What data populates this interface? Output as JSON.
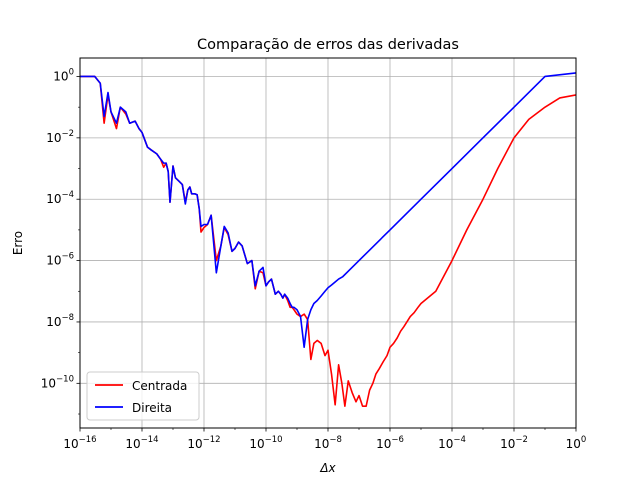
{
  "chart_data": {
    "type": "line",
    "title": "Comparação de erros das derivadas",
    "xlabel": "Δx",
    "ylabel": "Erro",
    "xscale": "log",
    "yscale": "log",
    "xlim": [
      1e-16,
      1
    ],
    "ylim": [
      3.5e-12,
      4
    ],
    "grid": true,
    "legend_position": "lower-left",
    "xticks": [
      1e-16,
      1e-14,
      1e-12,
      1e-10,
      1e-08,
      1e-06,
      0.0001,
      0.01,
      1
    ],
    "xtick_labels": [
      {
        "base": "10",
        "exp": "−16"
      },
      {
        "base": "10",
        "exp": "−14"
      },
      {
        "base": "10",
        "exp": "−12"
      },
      {
        "base": "10",
        "exp": "−10"
      },
      {
        "base": "10",
        "exp": "−8"
      },
      {
        "base": "10",
        "exp": "−6"
      },
      {
        "base": "10",
        "exp": "−4"
      },
      {
        "base": "10",
        "exp": "−2"
      },
      {
        "base": "10",
        "exp": "0"
      }
    ],
    "yticks": [
      1e-10,
      1e-08,
      1e-06,
      0.0001,
      0.01,
      1
    ],
    "ytick_labels": [
      {
        "base": "10",
        "exp": "−10"
      },
      {
        "base": "10",
        "exp": "−8"
      },
      {
        "base": "10",
        "exp": "−6"
      },
      {
        "base": "10",
        "exp": "−4"
      },
      {
        "base": "10",
        "exp": "−2"
      },
      {
        "base": "10",
        "exp": "0"
      }
    ],
    "series": [
      {
        "name": "Centrada",
        "color": "#ff0000",
        "x": [
          1e-16,
          2e-16,
          3e-16,
          4.5e-16,
          6e-16,
          8e-16,
          1e-15,
          1.5e-15,
          2e-15,
          3e-15,
          4e-15,
          6e-15,
          8e-15,
          1e-14,
          1.5e-14,
          2e-14,
          3e-14,
          4e-14,
          5e-14,
          6e-14,
          7e-14,
          8e-14,
          1e-13,
          1.2e-13,
          1.5e-13,
          2e-13,
          2.5e-13,
          3e-13,
          3.5e-13,
          4e-13,
          5e-13,
          6e-13,
          7e-13,
          8e-13,
          1e-12,
          1.3e-12,
          1.7e-12,
          2.5e-12,
          3.5e-12,
          4.5e-12,
          6e-12,
          8e-12,
          1e-11,
          1.3e-11,
          1.7e-11,
          2.5e-11,
          3.5e-11,
          4.5e-11,
          6e-11,
          8e-11,
          1e-10,
          1.2e-10,
          1.5e-10,
          2e-10,
          2.5e-10,
          3e-10,
          3.5e-10,
          4e-10,
          5e-10,
          6e-10,
          7e-10,
          8e-10,
          1e-09,
          1.3e-09,
          1.7e-09,
          2.2e-09,
          2.8e-09,
          3.5e-09,
          4.5e-09,
          6e-09,
          8e-09,
          1e-08,
          1.3e-08,
          1.7e-08,
          2.2e-08,
          2.8e-08,
          3.5e-08,
          4.5e-08,
          6e-08,
          8e-08,
          1e-07,
          1.3e-07,
          1.7e-07,
          2.2e-07,
          2.8e-07,
          3.5e-07,
          4.5e-07,
          6e-07,
          8e-07,
          1e-06,
          1.3e-06,
          1.7e-06,
          2.2e-06,
          2.8e-06,
          3.5e-06,
          4.5e-06,
          6e-06,
          8e-06,
          1e-05,
          3e-05,
          0.0001,
          0.0003,
          0.001,
          0.003,
          0.01,
          0.03,
          0.1,
          0.3,
          1
        ],
        "y": [
          1,
          1,
          1,
          0.6,
          0.03,
          0.25,
          0.07,
          0.02,
          0.1,
          0.06,
          0.03,
          0.035,
          0.02,
          0.015,
          0.005,
          0.004,
          0.003,
          0.002,
          0.0011,
          0.0015,
          0.0008,
          8e-05,
          0.0012,
          0.0005,
          0.0004,
          0.0003,
          8e-05,
          0.0002,
          0.00025,
          0.00015,
          0.00015,
          0.00014,
          5e-05,
          8.5e-06,
          1.2e-05,
          1.5e-05,
          3e-05,
          1e-06,
          3e-06,
          1.2e-05,
          7e-06,
          2e-06,
          2.5e-06,
          4e-06,
          3e-06,
          8e-07,
          1e-06,
          1.2e-07,
          4.5e-07,
          4e-07,
          1.5e-07,
          2e-07,
          2.5e-07,
          8e-08,
          1e-07,
          8e-08,
          6e-08,
          8e-08,
          5e-08,
          3e-08,
          3e-08,
          2.5e-08,
          1.8e-08,
          1.5e-08,
          1.8e-08,
          1.2e-08,
          6e-10,
          2e-09,
          2.5e-09,
          2e-09,
          8e-10,
          1.2e-09,
          2e-10,
          2e-11,
          4e-10,
          1e-10,
          1.8e-11,
          1.2e-10,
          5e-11,
          2.5e-11,
          4e-11,
          1.8e-11,
          1.8e-11,
          6e-11,
          1e-10,
          2e-10,
          3e-10,
          5e-10,
          8e-10,
          1.5e-09,
          2e-09,
          3e-09,
          5e-09,
          7e-09,
          1e-08,
          1.5e-08,
          2e-08,
          3e-08,
          4e-08,
          1e-07,
          1e-06,
          1e-05,
          0.0001,
          0.001,
          0.01,
          0.04,
          0.1,
          0.2,
          0.25
        ]
      },
      {
        "name": "Direita",
        "color": "#0000ff",
        "x": [
          1e-16,
          2e-16,
          3e-16,
          4.5e-16,
          6e-16,
          8e-16,
          1e-15,
          1.5e-15,
          2e-15,
          3e-15,
          4e-15,
          6e-15,
          8e-15,
          1e-14,
          1.5e-14,
          2e-14,
          3e-14,
          4e-14,
          5e-14,
          6e-14,
          7e-14,
          8e-14,
          1e-13,
          1.2e-13,
          1.5e-13,
          2e-13,
          2.5e-13,
          3e-13,
          3.5e-13,
          4e-13,
          5e-13,
          6e-13,
          7e-13,
          8e-13,
          1e-12,
          1.3e-12,
          1.7e-12,
          2.5e-12,
          3.5e-12,
          4.5e-12,
          6e-12,
          8e-12,
          1e-11,
          1.3e-11,
          1.7e-11,
          2.5e-11,
          3.5e-11,
          4.5e-11,
          6e-11,
          8e-11,
          1e-10,
          1.2e-10,
          1.5e-10,
          2e-10,
          2.5e-10,
          3e-10,
          3.5e-10,
          4e-10,
          5e-10,
          6e-10,
          7e-10,
          8e-10,
          1e-09,
          1.3e-09,
          1.7e-09,
          2.2e-09,
          2.8e-09,
          3.5e-09,
          4.5e-09,
          6e-09,
          8e-09,
          1e-08,
          1.3e-08,
          1.7e-08,
          2.2e-08,
          3e-08,
          5e-08,
          1e-07,
          1e-06,
          1e-05,
          0.0001,
          0.001,
          0.01,
          0.1,
          1
        ],
        "y": [
          1,
          1,
          1,
          0.6,
          0.05,
          0.3,
          0.07,
          0.03,
          0.1,
          0.07,
          0.03,
          0.035,
          0.02,
          0.015,
          0.005,
          0.004,
          0.003,
          0.002,
          0.0015,
          0.0015,
          0.0008,
          8e-05,
          0.0012,
          0.0005,
          0.0004,
          0.0003,
          7e-05,
          0.0002,
          0.00025,
          0.00015,
          0.00015,
          0.00014,
          5e-05,
          1.3e-05,
          1.5e-05,
          1.5e-05,
          3e-05,
          4e-07,
          3e-06,
          1.3e-05,
          8e-06,
          2e-06,
          2.5e-06,
          4e-06,
          3e-06,
          8e-07,
          1e-06,
          1.5e-07,
          4.5e-07,
          6e-07,
          1.5e-07,
          2e-07,
          2.5e-07,
          8e-08,
          1e-07,
          8e-08,
          6e-08,
          8e-08,
          6e-08,
          4e-08,
          3e-08,
          3e-08,
          2.5e-08,
          1.5e-08,
          1.5e-09,
          1.2e-08,
          2.5e-08,
          4e-08,
          5e-08,
          7e-08,
          1e-07,
          1.3e-07,
          1.6e-07,
          2e-07,
          2.5e-07,
          3e-07,
          5e-07,
          1e-06,
          1e-05,
          0.0001,
          0.001,
          0.01,
          0.1,
          1,
          1.3
        ]
      }
    ]
  }
}
